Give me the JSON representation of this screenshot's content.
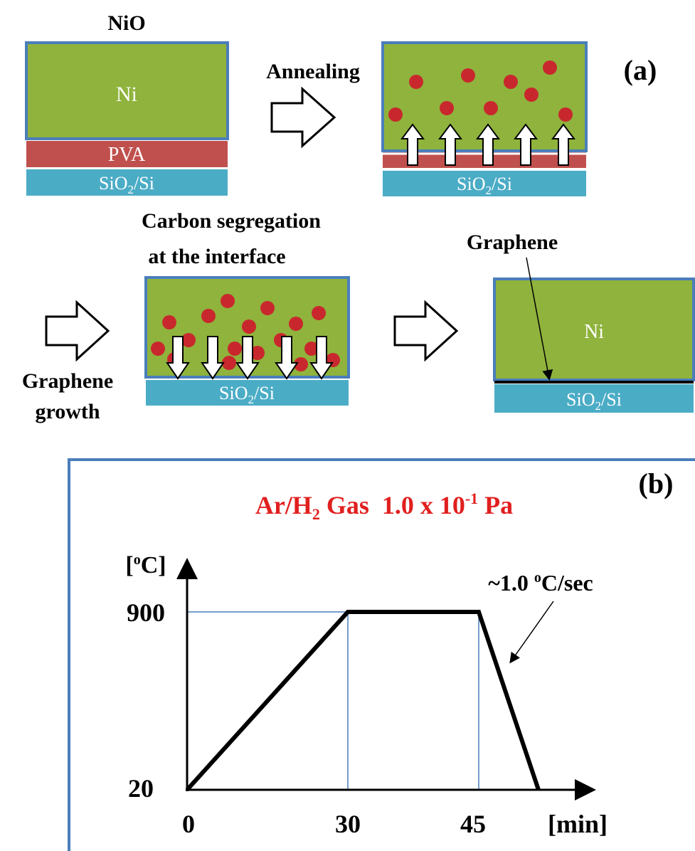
{
  "panel_a": {
    "label": "(a)",
    "step1": {
      "top": "NiO",
      "metal": "Ni",
      "polymer": "PVA",
      "substrate": {
        "base": "SiO",
        "sub": "2",
        "rest": "/Si"
      }
    },
    "arrow1": "Annealing",
    "step2": {
      "substrate": {
        "base": "SiO",
        "sub": "2",
        "rest": "/Si"
      }
    },
    "step3": {
      "caption": [
        "Carbon segregation",
        "at the interface"
      ],
      "substrate": {
        "base": "SiO",
        "sub": "2",
        "rest": "/Si"
      }
    },
    "arrow_in": [
      "Graphene",
      "growth"
    ],
    "step4": {
      "label": "Graphene",
      "metal": "Ni",
      "substrate": {
        "base": "SiO",
        "sub": "2",
        "rest": "/Si"
      }
    }
  },
  "panel_b": {
    "label": "(b)",
    "gas": {
      "a": "Ar/H",
      "sub": "2",
      "b": " Gas  1.0 x 10",
      "sup": "-1",
      "c": " Pa"
    },
    "y_unit": {
      "open": "[",
      "sup": "o",
      "close": "C]"
    },
    "y_labels": [
      "900",
      "20"
    ],
    "rate": {
      "a": "~1.0 ",
      "sup": "o",
      "b": "C/sec"
    },
    "x_labels": [
      "0",
      "30",
      "45"
    ],
    "x_unit": "[min]"
  }
}
